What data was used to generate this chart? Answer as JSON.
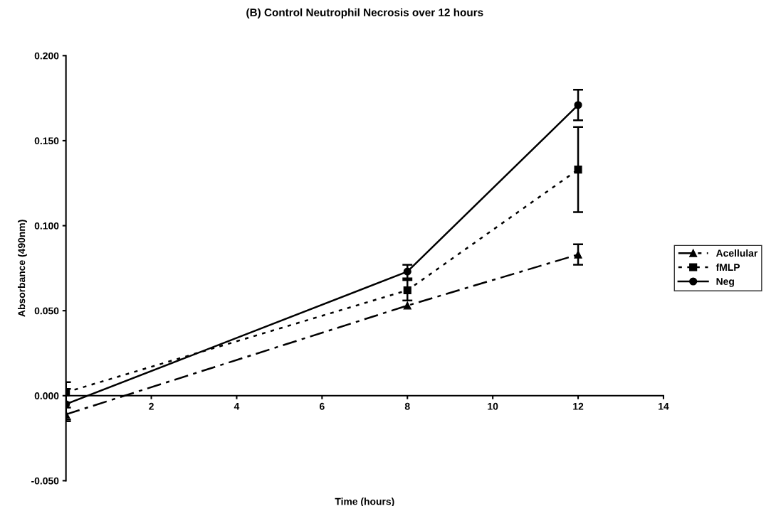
{
  "chart_data": {
    "type": "line",
    "title": "(B) Control Neutrophil Necrosis over 12 hours",
    "xlabel": "Time (hours)",
    "ylabel": "Absorbance (490nm)",
    "x": [
      0,
      8,
      12
    ],
    "series": [
      {
        "name": "Acellular",
        "color": "#000000",
        "marker": "triangle",
        "line_style": "dashed",
        "values": [
          -0.011,
          0.053,
          0.083
        ],
        "errors": [
          0.004,
          null,
          0.006
        ]
      },
      {
        "name": "fMLP",
        "color": "#000000",
        "marker": "square",
        "line_style": "dotted",
        "values": [
          0.002,
          0.062,
          0.133
        ],
        "errors": [
          0.006,
          0.006,
          0.025
        ]
      },
      {
        "name": "Neg",
        "color": "#000000",
        "marker": "circle",
        "line_style": "solid",
        "values": [
          -0.005,
          0.073,
          0.171
        ],
        "errors": [
          0.009,
          0.004,
          0.009
        ]
      }
    ],
    "xlim": [
      0,
      14
    ],
    "xticks": [
      2,
      4,
      6,
      8,
      10,
      12,
      14
    ],
    "ylim": [
      -0.05,
      0.2
    ],
    "yticks": [
      {
        "value": -0.05,
        "label": "-0.050"
      },
      {
        "value": 0,
        "label": "0.000"
      },
      {
        "value": 0.05,
        "label": "0.050"
      },
      {
        "value": 0.1,
        "label": "0.100"
      },
      {
        "value": 0.15,
        "label": "0.150"
      },
      {
        "value": 0.2,
        "label": "0.200"
      }
    ],
    "grid": false,
    "legend": "right"
  }
}
